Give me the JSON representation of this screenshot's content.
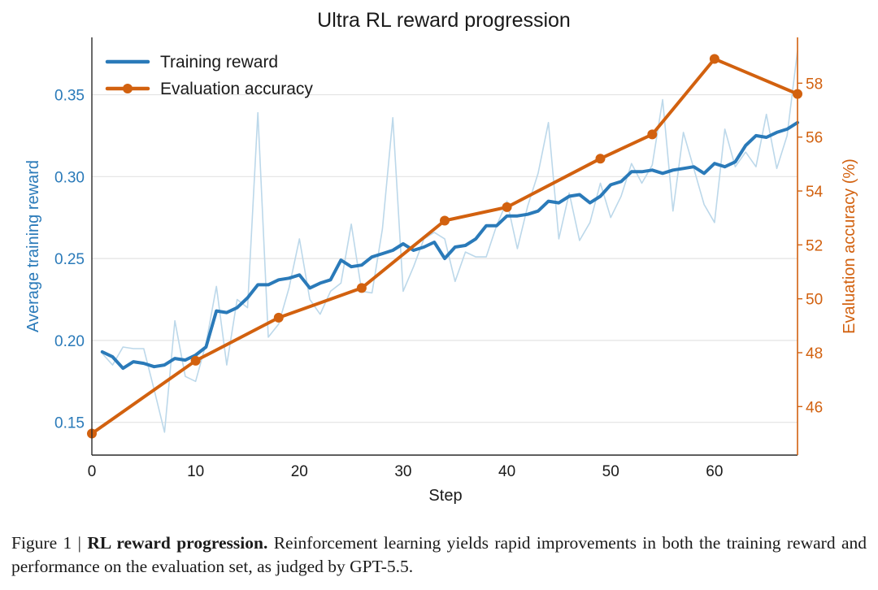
{
  "chart_data": {
    "type": "line",
    "title": "Ultra RL reward progression",
    "xlabel": "Step",
    "ylabel_left": "Average training reward",
    "ylabel_right": "Evaluation accuracy (%)",
    "xlim": [
      0,
      68
    ],
    "ylim_left": [
      0.13,
      0.385
    ],
    "ylim_right": [
      44.2,
      59.7
    ],
    "xticks": [
      0,
      10,
      20,
      30,
      40,
      50,
      60
    ],
    "yticks_left": [
      0.15,
      0.2,
      0.25,
      0.3,
      0.35
    ],
    "yticks_left_labels": [
      "0.15",
      "0.20",
      "0.25",
      "0.30",
      "0.35"
    ],
    "yticks_right": [
      46,
      48,
      50,
      52,
      54,
      56,
      58
    ],
    "grid": "horizontal",
    "legend_position": "top-left",
    "colors": {
      "training": "#2a7ab9",
      "training_raw": "#bcd8ea",
      "evaluation": "#d2610f"
    },
    "series": [
      {
        "name": "Training reward",
        "axis": "left",
        "x": [
          1,
          2,
          3,
          4,
          5,
          6,
          7,
          8,
          9,
          10,
          11,
          12,
          13,
          14,
          15,
          16,
          17,
          18,
          19,
          20,
          21,
          22,
          23,
          24,
          25,
          26,
          27,
          28,
          29,
          30,
          31,
          32,
          33,
          34,
          35,
          36,
          37,
          38,
          39,
          40,
          41,
          42,
          43,
          44,
          45,
          46,
          47,
          48,
          49,
          50,
          51,
          52,
          53,
          54,
          55,
          56,
          57,
          58,
          59,
          60,
          61,
          62,
          63,
          64,
          65,
          66,
          67,
          68
        ],
        "values": [
          0.193,
          0.19,
          0.183,
          0.187,
          0.186,
          0.184,
          0.185,
          0.189,
          0.188,
          0.191,
          0.196,
          0.218,
          0.217,
          0.22,
          0.226,
          0.234,
          0.234,
          0.237,
          0.238,
          0.24,
          0.232,
          0.235,
          0.237,
          0.249,
          0.245,
          0.246,
          0.251,
          0.253,
          0.255,
          0.259,
          0.255,
          0.257,
          0.26,
          0.25,
          0.257,
          0.258,
          0.262,
          0.27,
          0.27,
          0.276,
          0.276,
          0.277,
          0.279,
          0.285,
          0.284,
          0.288,
          0.289,
          0.284,
          0.288,
          0.295,
          0.297,
          0.303,
          0.303,
          0.304,
          0.302,
          0.304,
          0.305,
          0.306,
          0.302,
          0.308,
          0.306,
          0.309,
          0.319,
          0.325,
          0.324,
          0.327,
          0.329,
          0.333
        ]
      },
      {
        "name": "Training reward (raw)",
        "axis": "left",
        "x": [
          1,
          2,
          3,
          4,
          5,
          6,
          7,
          8,
          9,
          10,
          11,
          12,
          13,
          14,
          15,
          16,
          17,
          18,
          19,
          20,
          21,
          22,
          23,
          24,
          25,
          26,
          27,
          28,
          29,
          30,
          31,
          32,
          33,
          34,
          35,
          36,
          37,
          38,
          39,
          40,
          41,
          42,
          43,
          44,
          45,
          46,
          47,
          48,
          49,
          50,
          51,
          52,
          53,
          54,
          55,
          56,
          57,
          58,
          59,
          60,
          61,
          62,
          63,
          64,
          65,
          66,
          67,
          68
        ],
        "values": [
          0.192,
          0.185,
          0.196,
          0.195,
          0.195,
          0.17,
          0.144,
          0.212,
          0.178,
          0.175,
          0.198,
          0.233,
          0.185,
          0.225,
          0.22,
          0.339,
          0.202,
          0.21,
          0.232,
          0.262,
          0.225,
          0.216,
          0.23,
          0.235,
          0.271,
          0.23,
          0.229,
          0.268,
          0.336,
          0.23,
          0.245,
          0.262,
          0.266,
          0.262,
          0.236,
          0.254,
          0.251,
          0.251,
          0.27,
          0.285,
          0.256,
          0.282,
          0.302,
          0.333,
          0.262,
          0.29,
          0.261,
          0.272,
          0.296,
          0.275,
          0.288,
          0.308,
          0.296,
          0.307,
          0.347,
          0.279,
          0.327,
          0.305,
          0.283,
          0.272,
          0.329,
          0.306,
          0.315,
          0.306,
          0.338,
          0.305,
          0.325,
          0.377
        ]
      },
      {
        "name": "Evaluation accuracy",
        "axis": "right",
        "x": [
          0,
          10,
          18,
          26,
          34,
          40,
          49,
          54,
          60,
          68
        ],
        "values": [
          45.0,
          47.7,
          49.3,
          50.4,
          52.9,
          53.4,
          55.2,
          56.1,
          58.9,
          57.6
        ]
      }
    ]
  },
  "legend": {
    "training_label": "Training reward",
    "evaluation_label": "Evaluation accuracy"
  },
  "caption": {
    "prefix": "Figure 1 | ",
    "bold": "RL reward progression.",
    "text": " Reinforcement learning yields rapid improvements in both the training reward and performance on the evaluation set, as judged by GPT-5.5."
  }
}
